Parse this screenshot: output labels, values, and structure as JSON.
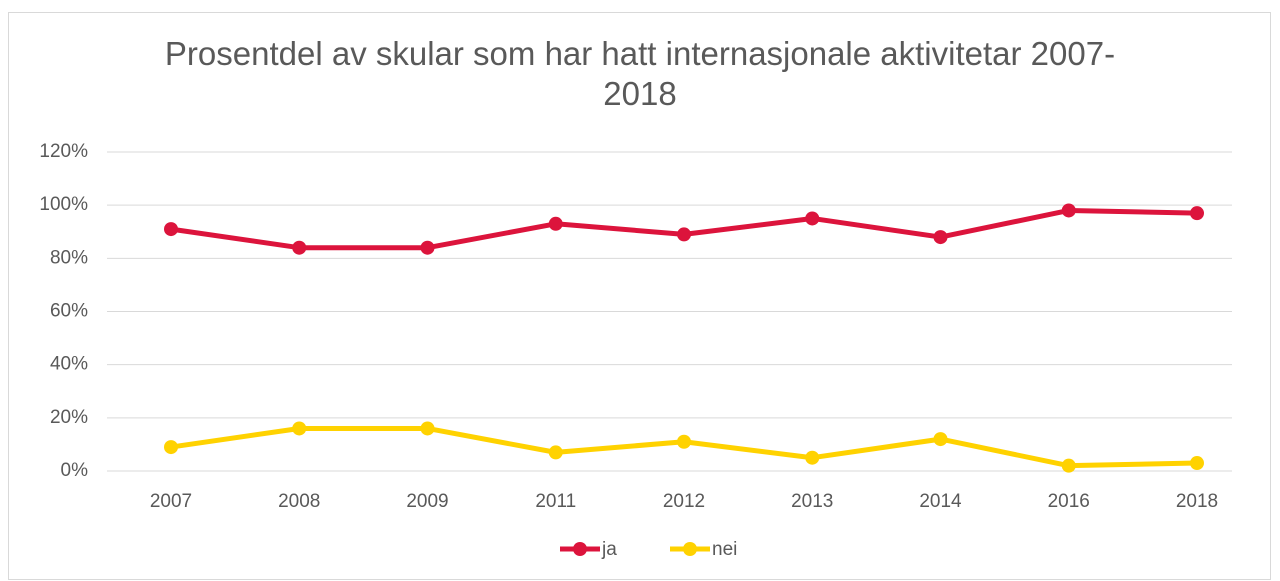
{
  "chart_data": {
    "type": "line",
    "title": "Prosentdel av skular som har hatt internasjonale aktivitetar 2007-2018",
    "categories": [
      "2007",
      "2008",
      "2009",
      "2011",
      "2012",
      "2013",
      "2014",
      "2016",
      "2018"
    ],
    "series": [
      {
        "name": "ja",
        "color": "#dc143c",
        "values": [
          91,
          84,
          84,
          93,
          89,
          95,
          88,
          98,
          97
        ]
      },
      {
        "name": "nei",
        "color": "#ffd200",
        "values": [
          9,
          16,
          16,
          7,
          11,
          5,
          12,
          2,
          3
        ]
      }
    ],
    "ylim": [
      0,
      120
    ],
    "yticks": [
      {
        "value": 0,
        "label": "0%"
      },
      {
        "value": 20,
        "label": "20%"
      },
      {
        "value": 40,
        "label": "40%"
      },
      {
        "value": 60,
        "label": "60%"
      },
      {
        "value": 80,
        "label": "80%"
      },
      {
        "value": 100,
        "label": "100%"
      },
      {
        "value": 120,
        "label": "120%"
      }
    ],
    "grid": true,
    "legend": "bottom"
  }
}
